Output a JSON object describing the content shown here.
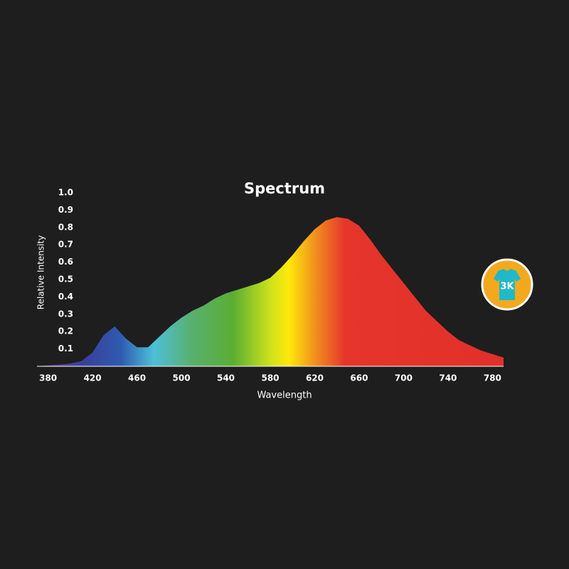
{
  "chart_data": {
    "type": "area",
    "title": "Spectrum",
    "xlabel": "Wavelength",
    "ylabel": "Relative Intensity",
    "x": [
      370,
      380,
      390,
      400,
      410,
      420,
      430,
      440,
      450,
      460,
      470,
      480,
      490,
      500,
      510,
      520,
      530,
      540,
      550,
      560,
      570,
      580,
      590,
      600,
      610,
      620,
      630,
      640,
      650,
      660,
      670,
      680,
      690,
      700,
      710,
      720,
      730,
      740,
      750,
      760,
      770,
      780,
      790
    ],
    "values": [
      0,
      0.005,
      0.01,
      0.015,
      0.03,
      0.08,
      0.18,
      0.23,
      0.16,
      0.11,
      0.11,
      0.17,
      0.23,
      0.28,
      0.32,
      0.35,
      0.39,
      0.42,
      0.44,
      0.46,
      0.48,
      0.51,
      0.57,
      0.64,
      0.72,
      0.79,
      0.84,
      0.86,
      0.85,
      0.81,
      0.73,
      0.64,
      0.56,
      0.48,
      0.4,
      0.32,
      0.26,
      0.2,
      0.15,
      0.12,
      0.09,
      0.07,
      0.05
    ],
    "xlim": [
      370,
      790
    ],
    "ylim": [
      0,
      1
    ],
    "xticks": [
      380,
      420,
      460,
      500,
      540,
      580,
      620,
      660,
      700,
      740,
      780
    ],
    "yticks": [
      0.1,
      0.2,
      0.3,
      0.4,
      0.5,
      0.6,
      0.7,
      0.8,
      0.9,
      {
        "value": 1,
        "label": "1.0"
      }
    ],
    "badge": "3K"
  }
}
